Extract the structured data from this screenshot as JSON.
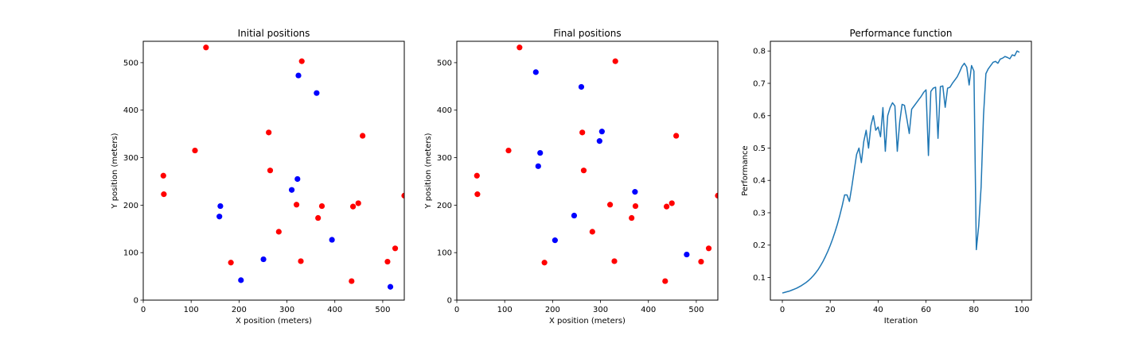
{
  "chart_data": [
    {
      "type": "scatter",
      "title": "Initial positions",
      "xlabel": "X position (meters)",
      "ylabel": "Y position (meters)",
      "xlim": [
        0,
        545
      ],
      "ylim": [
        0,
        545
      ],
      "xticks": [
        0,
        100,
        200,
        300,
        400,
        500
      ],
      "yticks": [
        0,
        100,
        200,
        300,
        400,
        500
      ],
      "grid": false,
      "series": [
        {
          "color": "#ff0000",
          "points": [
            [
              42,
              262
            ],
            [
              43,
              223
            ],
            [
              108,
              315
            ],
            [
              131,
              532
            ],
            [
              183,
              79
            ],
            [
              262,
              353
            ],
            [
              265,
              273
            ],
            [
              283,
              144
            ],
            [
              320,
              201
            ],
            [
              329,
              82
            ],
            [
              331,
              503
            ],
            [
              365,
              173
            ],
            [
              373,
              198
            ],
            [
              435,
              40
            ],
            [
              438,
              197
            ],
            [
              449,
              204
            ],
            [
              458,
              346
            ],
            [
              510,
              81
            ],
            [
              526,
              109
            ],
            [
              545,
              220
            ]
          ]
        },
        {
          "color": "#0000ff",
          "points": [
            [
              159,
              176
            ],
            [
              161,
              198
            ],
            [
              204,
              42
            ],
            [
              251,
              86
            ],
            [
              310,
              232
            ],
            [
              322,
              255
            ],
            [
              324,
              473
            ],
            [
              362,
              436
            ],
            [
              394,
              127
            ],
            [
              516,
              28
            ]
          ]
        }
      ]
    },
    {
      "type": "scatter",
      "title": "Final positions",
      "xlabel": "X position (meters)",
      "ylabel": "Y position (meters)",
      "xlim": [
        0,
        545
      ],
      "ylim": [
        0,
        545
      ],
      "xticks": [
        0,
        100,
        200,
        300,
        400,
        500
      ],
      "yticks": [
        0,
        100,
        200,
        300,
        400,
        500
      ],
      "grid": false,
      "series": [
        {
          "color": "#ff0000",
          "points": [
            [
              42,
              262
            ],
            [
              43,
              223
            ],
            [
              108,
              315
            ],
            [
              131,
              532
            ],
            [
              183,
              79
            ],
            [
              262,
              353
            ],
            [
              265,
              273
            ],
            [
              283,
              144
            ],
            [
              320,
              201
            ],
            [
              329,
              82
            ],
            [
              331,
              503
            ],
            [
              365,
              173
            ],
            [
              373,
              198
            ],
            [
              435,
              40
            ],
            [
              438,
              197
            ],
            [
              449,
              204
            ],
            [
              458,
              346
            ],
            [
              510,
              81
            ],
            [
              526,
              109
            ],
            [
              545,
              220
            ]
          ]
        },
        {
          "color": "#0000ff",
          "points": [
            [
              165,
              480
            ],
            [
              170,
              282
            ],
            [
              174,
              310
            ],
            [
              205,
              126
            ],
            [
              245,
              178
            ],
            [
              260,
              449
            ],
            [
              298,
              335
            ],
            [
              303,
              355
            ],
            [
              372,
              228
            ],
            [
              480,
              96
            ]
          ]
        }
      ]
    },
    {
      "type": "line",
      "title": "Performance function",
      "xlabel": "Iteration",
      "ylabel": "Performance",
      "xlim": [
        -5,
        104
      ],
      "ylim": [
        0.03,
        0.83
      ],
      "xticks": [
        0,
        20,
        40,
        60,
        80,
        100
      ],
      "yticks": [
        0.1,
        0.2,
        0.3,
        0.4,
        0.5,
        0.6,
        0.7,
        0.8
      ],
      "grid": false,
      "series": [
        {
          "color": "#1f77b4",
          "x": [
            0,
            1,
            2,
            3,
            4,
            5,
            6,
            7,
            8,
            9,
            10,
            11,
            12,
            13,
            14,
            15,
            16,
            17,
            18,
            19,
            20,
            21,
            22,
            23,
            24,
            25,
            26,
            27,
            28,
            29,
            30,
            31,
            32,
            33,
            34,
            35,
            36,
            37,
            38,
            39,
            40,
            41,
            42,
            43,
            44,
            45,
            46,
            47,
            48,
            49,
            50,
            51,
            52,
            53,
            54,
            55,
            56,
            57,
            58,
            59,
            60,
            61,
            62,
            63,
            64,
            65,
            66,
            67,
            68,
            69,
            70,
            71,
            72,
            73,
            74,
            75,
            76,
            77,
            78,
            79,
            80,
            81,
            82,
            83,
            84,
            85,
            86,
            87,
            88,
            89,
            90,
            91,
            92,
            93,
            94,
            95,
            96,
            97,
            98,
            99
          ],
          "y": [
            0.052,
            0.054,
            0.056,
            0.058,
            0.061,
            0.064,
            0.067,
            0.071,
            0.075,
            0.08,
            0.085,
            0.091,
            0.098,
            0.106,
            0.115,
            0.125,
            0.137,
            0.15,
            0.165,
            0.181,
            0.199,
            0.219,
            0.241,
            0.265,
            0.292,
            0.322,
            0.355,
            0.355,
            0.335,
            0.38,
            0.43,
            0.48,
            0.5,
            0.455,
            0.52,
            0.555,
            0.5,
            0.57,
            0.6,
            0.555,
            0.565,
            0.535,
            0.625,
            0.49,
            0.6,
            0.625,
            0.64,
            0.63,
            0.49,
            0.58,
            0.635,
            0.632,
            0.59,
            0.545,
            0.62,
            0.63,
            0.64,
            0.65,
            0.66,
            0.672,
            0.68,
            0.477,
            0.675,
            0.685,
            0.688,
            0.53,
            0.69,
            0.692,
            0.626,
            0.685,
            0.688,
            0.7,
            0.71,
            0.72,
            0.735,
            0.752,
            0.762,
            0.75,
            0.695,
            0.755,
            0.738,
            0.186,
            0.26,
            0.38,
            0.6,
            0.73,
            0.745,
            0.755,
            0.765,
            0.768,
            0.762,
            0.775,
            0.778,
            0.783,
            0.78,
            0.776,
            0.788,
            0.785,
            0.8,
            0.796
          ]
        }
      ]
    }
  ]
}
